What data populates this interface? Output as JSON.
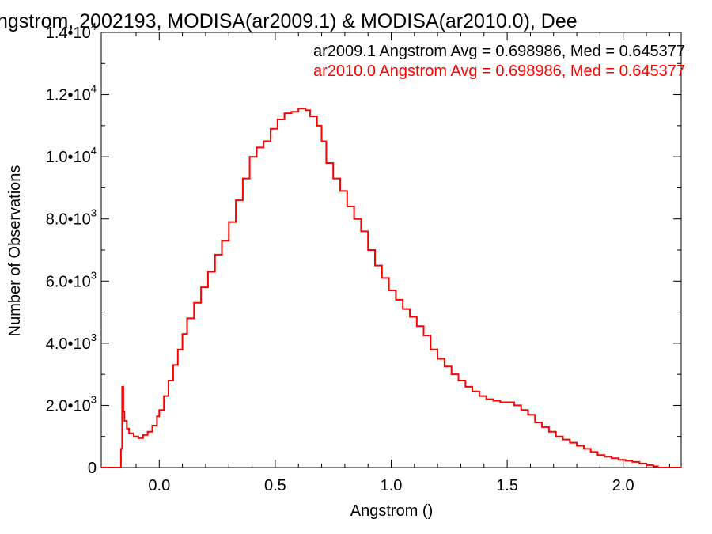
{
  "chart_data": {
    "type": "line",
    "title": "ngstrom, 2002193, MODISA(ar2009.1) & MODISA(ar2010.0), Dee",
    "xlabel": "Angstrom ()",
    "ylabel": "Number of Observations",
    "xlim": [
      -0.25,
      2.25
    ],
    "ylim": [
      0,
      14000
    ],
    "x_ticks": [
      {
        "value": 0.0,
        "label": "0.0"
      },
      {
        "value": 0.5,
        "label": "0.5"
      },
      {
        "value": 1.0,
        "label": "1.0"
      },
      {
        "value": 1.5,
        "label": "1.5"
      },
      {
        "value": 2.0,
        "label": "2.0"
      }
    ],
    "y_ticks": [
      {
        "value": 0,
        "mant": "0",
        "exp": ""
      },
      {
        "value": 2000,
        "mant": "2.0•10",
        "exp": "3"
      },
      {
        "value": 4000,
        "mant": "4.0•10",
        "exp": "3"
      },
      {
        "value": 6000,
        "mant": "6.0•10",
        "exp": "3"
      },
      {
        "value": 8000,
        "mant": "8.0•10",
        "exp": "3"
      },
      {
        "value": 10000,
        "mant": "1.0•10",
        "exp": "4"
      },
      {
        "value": 12000,
        "mant": "1.2•10",
        "exp": "4"
      },
      {
        "value": 14000,
        "mant": "1.4•10",
        "exp": "4"
      }
    ],
    "annotations": [
      {
        "text": "ar2009.1 Angstrom Avg = 0.698986, Med = 0.645377",
        "color": "#000000"
      },
      {
        "text": "ar2010.0 Angstrom Avg = 0.698986, Med = 0.645377",
        "color": "#ff0000"
      }
    ],
    "series": [
      {
        "color": "#ff0000",
        "points": [
          [
            -0.25,
            0
          ],
          [
            -0.17,
            0
          ],
          [
            -0.165,
            600
          ],
          [
            -0.16,
            2600
          ],
          [
            -0.155,
            1800
          ],
          [
            -0.15,
            1500
          ],
          [
            -0.14,
            1250
          ],
          [
            -0.13,
            1100
          ],
          [
            -0.11,
            1000
          ],
          [
            -0.09,
            950
          ],
          [
            -0.07,
            1050
          ],
          [
            -0.05,
            1150
          ],
          [
            -0.03,
            1350
          ],
          [
            -0.01,
            1650
          ],
          [
            0.0,
            1850
          ],
          [
            0.02,
            2300
          ],
          [
            0.04,
            2800
          ],
          [
            0.06,
            3300
          ],
          [
            0.08,
            3800
          ],
          [
            0.1,
            4300
          ],
          [
            0.12,
            4800
          ],
          [
            0.15,
            5300
          ],
          [
            0.18,
            5800
          ],
          [
            0.21,
            6300
          ],
          [
            0.24,
            6850
          ],
          [
            0.27,
            7300
          ],
          [
            0.3,
            7900
          ],
          [
            0.33,
            8600
          ],
          [
            0.36,
            9300
          ],
          [
            0.39,
            10000
          ],
          [
            0.42,
            10300
          ],
          [
            0.45,
            10500
          ],
          [
            0.48,
            10900
          ],
          [
            0.51,
            11200
          ],
          [
            0.54,
            11400
          ],
          [
            0.57,
            11450
          ],
          [
            0.6,
            11550
          ],
          [
            0.63,
            11500
          ],
          [
            0.65,
            11300
          ],
          [
            0.68,
            11000
          ],
          [
            0.7,
            10500
          ],
          [
            0.72,
            9800
          ],
          [
            0.75,
            9300
          ],
          [
            0.78,
            8900
          ],
          [
            0.81,
            8400
          ],
          [
            0.84,
            8000
          ],
          [
            0.87,
            7600
          ],
          [
            0.9,
            7000
          ],
          [
            0.93,
            6500
          ],
          [
            0.96,
            6100
          ],
          [
            0.99,
            5700
          ],
          [
            1.02,
            5400
          ],
          [
            1.05,
            5100
          ],
          [
            1.08,
            4850
          ],
          [
            1.11,
            4550
          ],
          [
            1.14,
            4250
          ],
          [
            1.17,
            3800
          ],
          [
            1.2,
            3500
          ],
          [
            1.23,
            3250
          ],
          [
            1.26,
            3000
          ],
          [
            1.29,
            2800
          ],
          [
            1.32,
            2600
          ],
          [
            1.35,
            2450
          ],
          [
            1.38,
            2300
          ],
          [
            1.41,
            2200
          ],
          [
            1.44,
            2150
          ],
          [
            1.47,
            2100
          ],
          [
            1.5,
            2100
          ],
          [
            1.53,
            2000
          ],
          [
            1.56,
            1850
          ],
          [
            1.59,
            1700
          ],
          [
            1.62,
            1450
          ],
          [
            1.65,
            1300
          ],
          [
            1.68,
            1150
          ],
          [
            1.71,
            1000
          ],
          [
            1.74,
            900
          ],
          [
            1.77,
            800
          ],
          [
            1.8,
            700
          ],
          [
            1.83,
            600
          ],
          [
            1.86,
            500
          ],
          [
            1.89,
            400
          ],
          [
            1.92,
            350
          ],
          [
            1.95,
            300
          ],
          [
            1.98,
            250
          ],
          [
            2.01,
            220
          ],
          [
            2.04,
            180
          ],
          [
            2.07,
            130
          ],
          [
            2.1,
            80
          ],
          [
            2.13,
            40
          ],
          [
            2.15,
            0
          ],
          [
            2.25,
            0
          ]
        ]
      }
    ]
  }
}
